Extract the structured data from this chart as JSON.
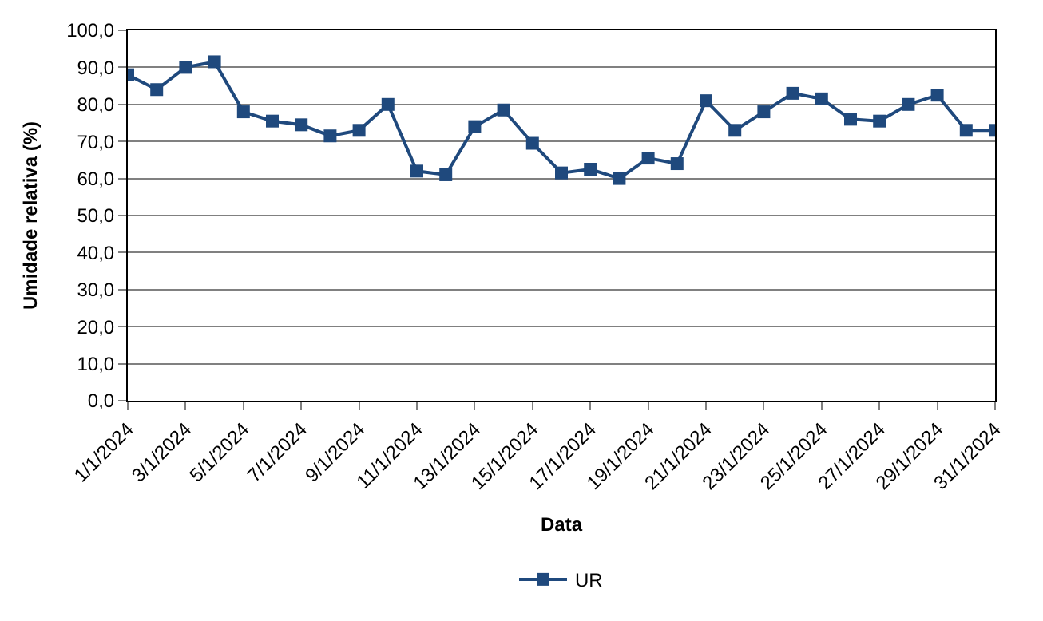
{
  "chart_data": {
    "type": "line",
    "xlabel": "Data",
    "ylabel": "Umidade relativa (%)",
    "categories": [
      "1/1/2024",
      null,
      "3/1/2024",
      null,
      "5/1/2024",
      null,
      "7/1/2024",
      null,
      "9/1/2024",
      null,
      "11/1/2024",
      null,
      "13/1/2024",
      null,
      "15/1/2024",
      null,
      "17/1/2024",
      null,
      "19/1/2024",
      null,
      "21/1/2024",
      null,
      "23/1/2024",
      null,
      "25/1/2024",
      null,
      "27/1/2024",
      null,
      "29/1/2024",
      null,
      "31/1/2024"
    ],
    "series": [
      {
        "name": "UR",
        "color": "#1f497d",
        "values": [
          88,
          84,
          90,
          91.5,
          78,
          75.5,
          74.5,
          71.5,
          73,
          80,
          62,
          61,
          74,
          78.5,
          69.5,
          61.5,
          62.5,
          60,
          65.5,
          64,
          81,
          73,
          78,
          83,
          81.5,
          76,
          75.5,
          80,
          82.5,
          73,
          73
        ]
      }
    ],
    "ylim": [
      0,
      100
    ],
    "yticks": [
      {
        "value": 0,
        "label": "0,0"
      },
      {
        "value": 10,
        "label": "10,0"
      },
      {
        "value": 20,
        "label": "20,0"
      },
      {
        "value": 30,
        "label": "30,0"
      },
      {
        "value": 40,
        "label": "40,0"
      },
      {
        "value": 50,
        "label": "50,0"
      },
      {
        "value": 60,
        "label": "60,0"
      },
      {
        "value": 70,
        "label": "70,0"
      },
      {
        "value": 80,
        "label": "80,0"
      },
      {
        "value": 90,
        "label": "90,0"
      },
      {
        "value": 100,
        "label": "100,0"
      }
    ],
    "grid": "y",
    "legend": "bottom",
    "marker": "square",
    "line_style": "solid"
  }
}
